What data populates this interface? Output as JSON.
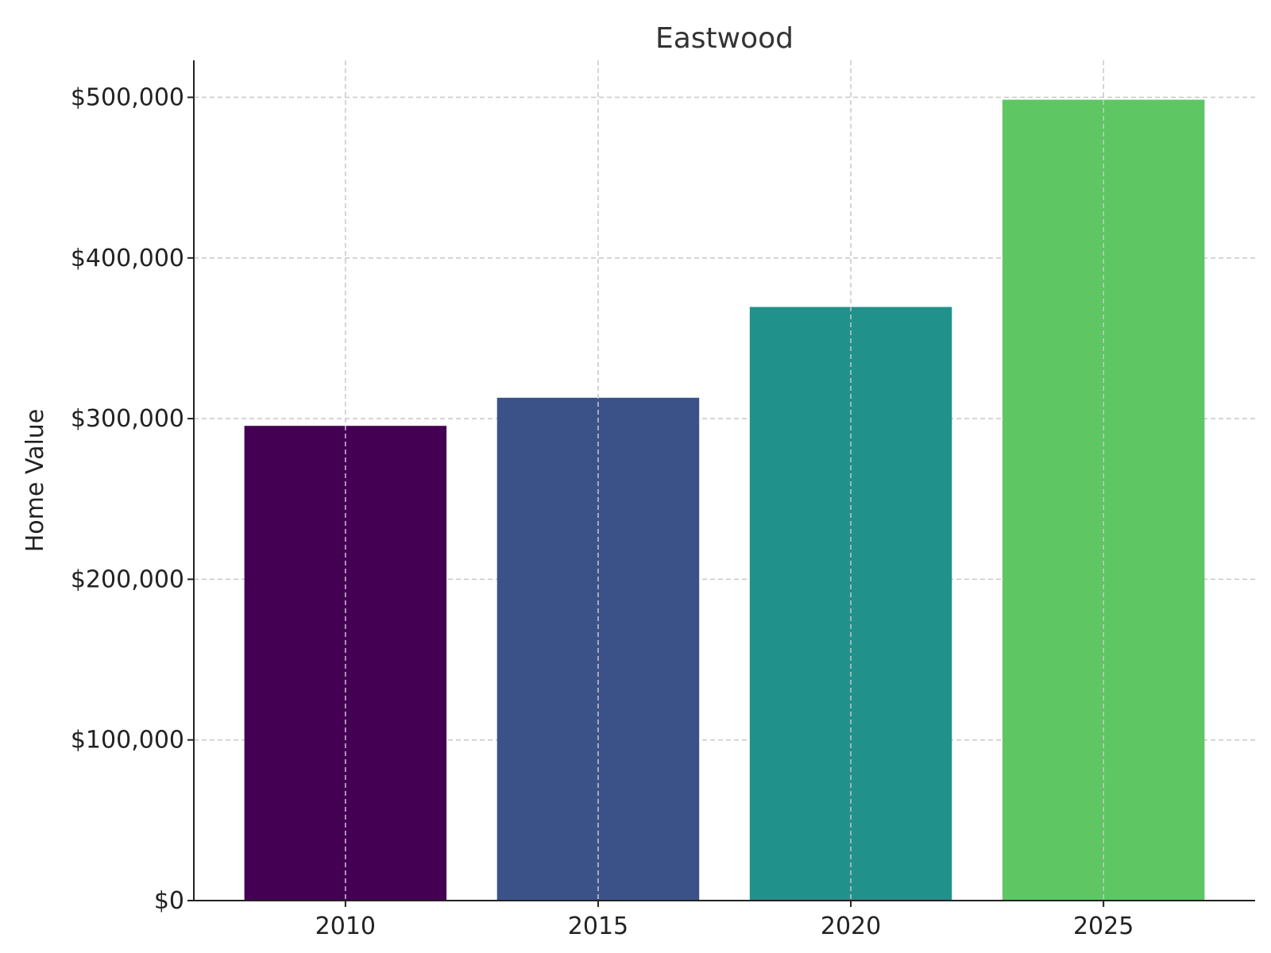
{
  "chart_data": {
    "type": "bar",
    "title": "Eastwood",
    "xlabel": "",
    "ylabel": "Home Value",
    "categories": [
      "2010",
      "2015",
      "2020",
      "2025"
    ],
    "values": [
      295500,
      313000,
      369500,
      498500
    ],
    "colors": [
      "#440154",
      "#3b5289",
      "#21918c",
      "#5ec662"
    ],
    "ylim": [
      0,
      523000
    ],
    "yticks": [
      0,
      100000,
      200000,
      300000,
      400000,
      500000
    ],
    "ytick_labels": [
      "$0",
      "$100,000",
      "$200,000",
      "$300,000",
      "$400,000",
      "$500,000"
    ],
    "grid": true
  }
}
